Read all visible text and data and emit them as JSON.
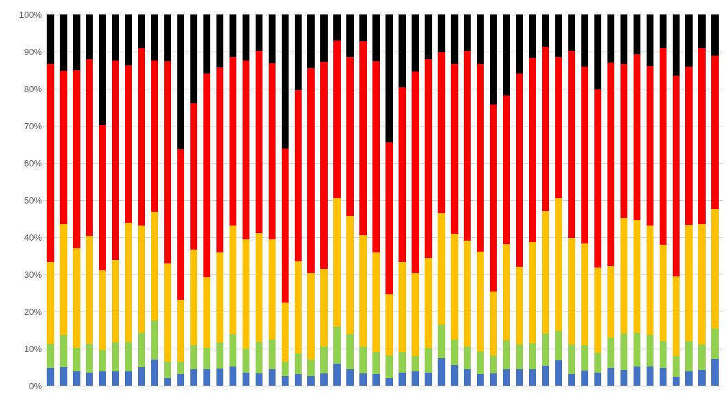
{
  "chart_data": {
    "type": "bar",
    "stacked": true,
    "categories": [
      null,
      null,
      null,
      null,
      null,
      null,
      null,
      null,
      null,
      null,
      null,
      null,
      null,
      null,
      null,
      null,
      null,
      null,
      null,
      null,
      null,
      null,
      null,
      null,
      null,
      null,
      null,
      null,
      null,
      null,
      null,
      null,
      null,
      null,
      null,
      null,
      null,
      null,
      null,
      null,
      null,
      null,
      null,
      null,
      null,
      null,
      null,
      null,
      null,
      null,
      null,
      null
    ],
    "series": [
      {
        "color": "#4472c4",
        "values": [
          4.8,
          5.0,
          3.9,
          3.5,
          3.9,
          3.9,
          3.8,
          5.0,
          7.0,
          2.0,
          3.1,
          4.4,
          4.5,
          4.6,
          5.2,
          3.6,
          3.4,
          4.4,
          2.6,
          3.2,
          2.6,
          3.4,
          6.0,
          4.4,
          3.4,
          3.1,
          2.1,
          3.6,
          3.9,
          3.6,
          7.4,
          5.6,
          4.4,
          3.2,
          3.4,
          4.4,
          4.4,
          4.4,
          5.4,
          6.9,
          3.2,
          4.1,
          3.6,
          4.8,
          4.3,
          5.2,
          5.2,
          4.8,
          2.4,
          3.9,
          4.2,
          7.2
        ]
      },
      {
        "color": "#92d050",
        "values": [
          6.5,
          8.7,
          6.3,
          7.8,
          5.8,
          7.8,
          8.0,
          9.3,
          10.6,
          4.4,
          3.3,
          6.5,
          5.7,
          7.1,
          8.6,
          6.4,
          8.5,
          8.0,
          3.8,
          5.5,
          4.4,
          7.1,
          10.0,
          9.4,
          7.1,
          6.0,
          6.0,
          5.4,
          4.1,
          6.6,
          9.0,
          6.9,
          6.1,
          6.0,
          4.8,
          7.8,
          6.7,
          7.0,
          8.7,
          8.0,
          7.9,
          6.8,
          5.3,
          8.1,
          9.8,
          9.0,
          8.5,
          7.3,
          5.6,
          8.2,
          6.9,
          8.2
        ]
      },
      {
        "color": "#ffc000",
        "values": [
          22.0,
          29.9,
          26.9,
          29.0,
          21.5,
          22.1,
          32.0,
          28.9,
          29.3,
          26.6,
          16.7,
          25.8,
          19.0,
          24.2,
          29.4,
          29.5,
          29.2,
          27.1,
          16.1,
          24.8,
          23.4,
          21.0,
          34.5,
          32.0,
          30.0,
          26.9,
          16.6,
          24.4,
          22.3,
          24.2,
          30.0,
          28.4,
          28.5,
          26.9,
          17.1,
          25.9,
          20.9,
          27.3,
          32.9,
          35.6,
          28.7,
          27.4,
          22.9,
          19.3,
          31.1,
          30.4,
          29.4,
          25.9,
          21.5,
          31.3,
          32.5,
          32.2
        ]
      },
      {
        "color": "#ff0000",
        "values": [
          53.3,
          41.3,
          47.9,
          47.6,
          38.9,
          53.8,
          42.5,
          47.7,
          40.7,
          54.5,
          40.6,
          39.4,
          54.8,
          49.9,
          45.4,
          48.1,
          49.1,
          47.4,
          41.4,
          46.1,
          55.2,
          55.7,
          42.5,
          42.8,
          52.2,
          51.5,
          40.8,
          46.9,
          54.4,
          53.5,
          43.5,
          45.8,
          51.1,
          50.6,
          50.4,
          40.1,
          52.0,
          49.6,
          44.3,
          38.1,
          50.3,
          47.6,
          48.1,
          54.8,
          41.5,
          44.6,
          43.0,
          53.0,
          54.0,
          42.5,
          47.4,
          41.3
        ]
      },
      {
        "color": "#000000",
        "values": [
          13.4,
          15.1,
          15.0,
          12.1,
          29.9,
          12.4,
          13.7,
          9.1,
          12.4,
          12.5,
          36.3,
          23.9,
          16.0,
          14.2,
          11.4,
          12.4,
          9.8,
          13.1,
          36.1,
          20.4,
          14.4,
          12.8,
          7.0,
          11.4,
          7.3,
          12.5,
          34.5,
          19.7,
          15.3,
          12.1,
          10.1,
          13.3,
          9.9,
          13.3,
          24.3,
          21.8,
          16.0,
          11.7,
          8.7,
          11.4,
          9.9,
          14.1,
          20.1,
          13.0,
          13.3,
          10.8,
          13.9,
          9.0,
          16.5,
          14.1,
          9.0,
          11.1
        ]
      }
    ],
    "ylim": [
      0,
      100
    ],
    "yticks": [
      {
        "value": 0,
        "label": "0%"
      },
      {
        "value": 10,
        "label": "10%"
      },
      {
        "value": 20,
        "label": "20%"
      },
      {
        "value": 30,
        "label": "30%"
      },
      {
        "value": 40,
        "label": "40%"
      },
      {
        "value": 50,
        "label": "50%"
      },
      {
        "value": 60,
        "label": "60%"
      },
      {
        "value": 70,
        "label": "70%"
      },
      {
        "value": 80,
        "label": "80%"
      },
      {
        "value": 90,
        "label": "90%"
      },
      {
        "value": 100,
        "label": "100%"
      }
    ],
    "grid": "y"
  }
}
